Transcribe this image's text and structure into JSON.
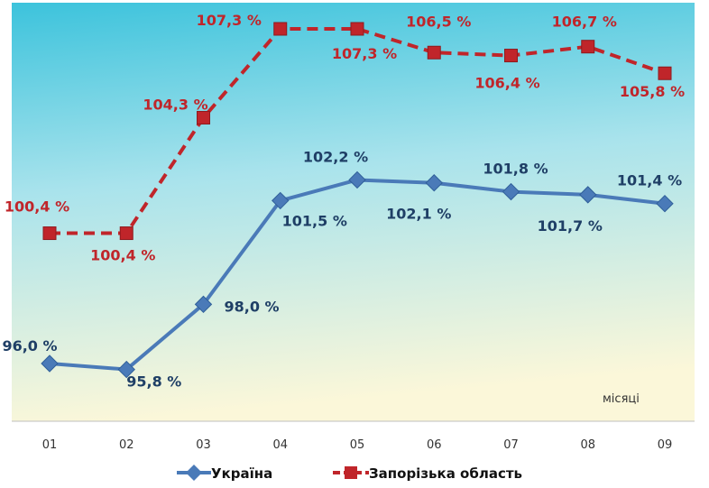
{
  "chart_data": {
    "type": "line",
    "categories": [
      "01",
      "02",
      "03",
      "04",
      "05",
      "06",
      "07",
      "08",
      "09"
    ],
    "x_unit_label": "місяці",
    "series": [
      {
        "name": "Україна",
        "color": "#4a7ab8",
        "line_style": "solid",
        "marker": "diamond",
        "values": [
          96.0,
          95.8,
          98.0,
          101.5,
          102.2,
          102.1,
          101.8,
          101.7,
          101.4
        ],
        "labels": [
          "96,0 %",
          "95,8 %",
          "98,0 %",
          "101,5 %",
          "102,2 %",
          "102,1 %",
          "101,8 %",
          "101,7 %",
          "101,4 %"
        ]
      },
      {
        "name": "Запорізька область",
        "color": "#c0252a",
        "line_style": "dashed",
        "marker": "square",
        "values": [
          100.4,
          100.4,
          104.3,
          107.3,
          107.3,
          106.5,
          106.4,
          106.7,
          105.8
        ],
        "labels": [
          "100,4 %",
          "100,4 %",
          "104,3 %",
          "107,3 %",
          "107,3 %",
          "106,5 %",
          "106,4 %",
          "106,7 %",
          "105,8 %"
        ]
      }
    ],
    "legend_position": "bottom",
    "grid": false,
    "background": "gradient sky-blue to pale yellow"
  }
}
